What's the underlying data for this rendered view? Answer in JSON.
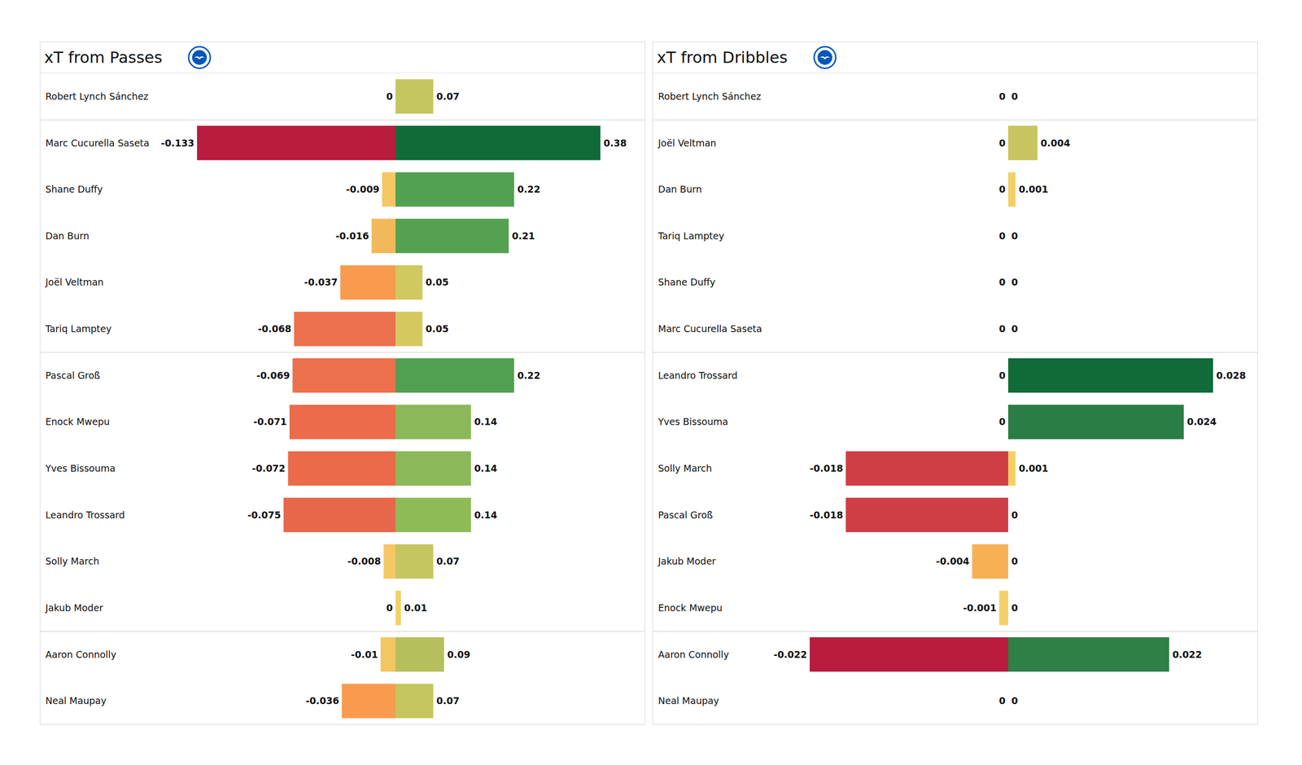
{
  "chart_data": [
    {
      "type": "bar",
      "orientation": "horizontal",
      "title": "xT from Passes",
      "categories": [
        "Robert Lynch Sánchez",
        "Marc Cucurella Saseta",
        "Shane Duffy",
        "Dan Burn",
        "Joël Veltman",
        "Tariq Lamptey",
        "Pascal Groß",
        "Enock Mwepu",
        "Yves Bissouma",
        "Leandro Trossard",
        "Solly March",
        "Jakub Moder",
        "Aaron Connolly",
        "Neal Maupay"
      ],
      "series": [
        {
          "values": [
            0,
            -0.133,
            -0.009,
            -0.016,
            -0.037,
            -0.068,
            -0.069,
            -0.071,
            -0.072,
            -0.075,
            -0.008,
            0,
            -0.01,
            -0.036
          ],
          "colors": [
            "#f6cf68",
            "#b81c3e",
            "#f5c765",
            "#f2b85a",
            "#f89b4e",
            "#ec704b",
            "#ec704b",
            "#eb6b4a",
            "#ea6a4a",
            "#e8674a",
            "#f5c765",
            "#f6cf68",
            "#f4c563",
            "#f89b4e"
          ]
        },
        {
          "values": [
            0.07,
            0.38,
            0.22,
            0.21,
            0.05,
            0.05,
            0.22,
            0.14,
            0.14,
            0.14,
            0.07,
            0.01,
            0.09,
            0.07
          ],
          "colors": [
            "#c5c560",
            "#116b38",
            "#52a052",
            "#55a152",
            "#d0c860",
            "#d5c85e",
            "#52a052",
            "#8bb858",
            "#8bb858",
            "#8ebb58",
            "#c5c560",
            "#f2d166",
            "#b5c05c",
            "#c5c560"
          ]
        }
      ],
      "xlim": [
        -0.133,
        0.38
      ],
      "tick_labels": false,
      "data_labels": true
    },
    {
      "type": "bar",
      "orientation": "horizontal",
      "title": "xT from Dribbles",
      "categories": [
        "Robert Lynch Sánchez",
        "Joël Veltman",
        "Dan Burn",
        "Tariq Lamptey",
        "Shane Duffy",
        "Marc Cucurella Saseta",
        "Leandro Trossard",
        "Yves Bissouma",
        "Solly March",
        "Pascal Groß",
        "Jakub Moder",
        "Enock Mwepu",
        "Aaron Connolly",
        "Neal Maupay"
      ],
      "series": [
        {
          "values": [
            0,
            0,
            0,
            0,
            0,
            0,
            0,
            0,
            -0.018,
            -0.018,
            -0.004,
            -0.001,
            -0.022,
            0
          ],
          "colors": [
            "#eedc7c",
            "#eedc7c",
            "#eedc7c",
            "#eedc7c",
            "#eedc7c",
            "#eedc7c",
            "#eedc7c",
            "#eedc7c",
            "#cf3d45",
            "#cf3d45",
            "#f7b155",
            "#f6cf68",
            "#b81c3e",
            "#eedc7c"
          ]
        },
        {
          "values": [
            0,
            0.004,
            0.001,
            0,
            0,
            0,
            0.028,
            0.024,
            0.001,
            0,
            0,
            0,
            0.022,
            0
          ],
          "colors": [
            "#e8e08a",
            "#c8c460",
            "#f4cf66",
            "#e8e08a",
            "#e8e08a",
            "#e8e08a",
            "#116b38",
            "#2a7d45",
            "#f4cf66",
            "#e8e08a",
            "#e8e08a",
            "#e8e08a",
            "#2e8047",
            "#e8e08a"
          ]
        }
      ],
      "xlim": [
        -0.022,
        0.028
      ],
      "tick_labels": false,
      "data_labels": true
    }
  ]
}
